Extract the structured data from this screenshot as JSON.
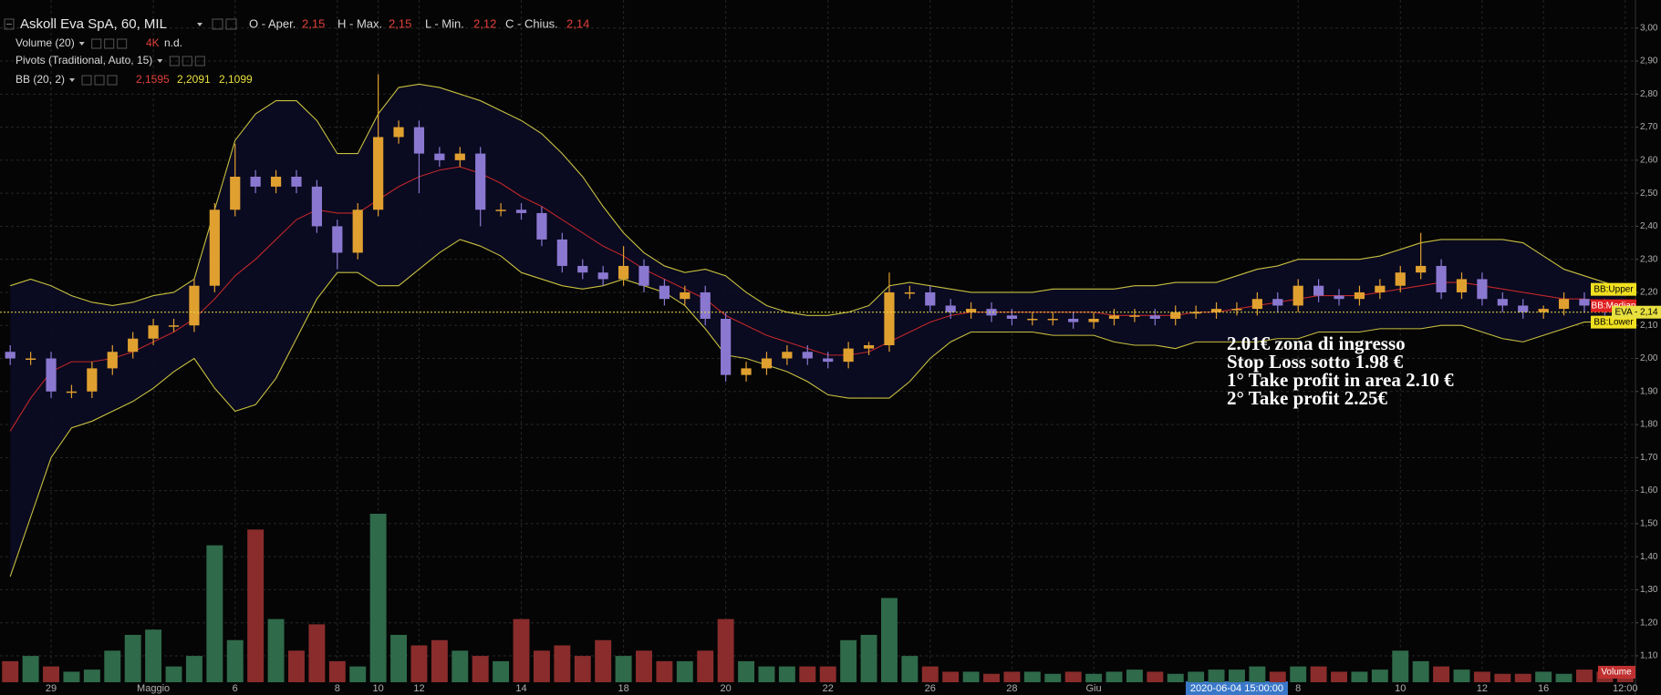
{
  "chart_data": {
    "type": "candlestick",
    "title": "Askoll Eva SpA, 60, MIL",
    "ohlc_legend": [
      {
        "label": "O - Aper.",
        "text": "2,15"
      },
      {
        "label": "H - Max.",
        "text": "2,15"
      },
      {
        "label": "L - Min.",
        "text": "2,12"
      },
      {
        "label": "C - Chius.",
        "text": "2,14"
      }
    ],
    "indicators": [
      {
        "name": "Volume (20)",
        "values": [
          "4K",
          "n.d."
        ],
        "value_colors": [
          "#e0403a",
          "#dddddd"
        ]
      },
      {
        "name": "Pivots (Traditional, Auto, 15)"
      },
      {
        "name": "BB (20, 2)",
        "values": [
          "2,1595",
          "2,2091",
          "2,1099"
        ],
        "value_colors": [
          "#e0403a",
          "#e8e040",
          "#e8e040"
        ]
      }
    ],
    "categories": [
      null,
      null,
      "29",
      null,
      null,
      null,
      null,
      "Maggio",
      null,
      null,
      null,
      "6",
      null,
      null,
      null,
      null,
      "8",
      null,
      "10",
      null,
      "12",
      null,
      null,
      null,
      null,
      "14",
      null,
      null,
      null,
      null,
      "18",
      null,
      null,
      null,
      null,
      "20",
      null,
      null,
      null,
      null,
      "22",
      null,
      null,
      null,
      null,
      "26",
      null,
      null,
      null,
      "28",
      null,
      null,
      null,
      "Giu",
      null,
      null,
      null,
      null,
      null,
      null,
      "2020-06-04 15:00:00",
      null,
      null,
      "8",
      null,
      null,
      null,
      null,
      "10",
      null,
      null,
      null,
      "12",
      null,
      null,
      "16",
      null,
      null,
      null,
      "12:00"
    ],
    "open": [
      2.02,
      2.0,
      2.0,
      1.9,
      1.9,
      1.97,
      2.02,
      2.06,
      2.1,
      2.1,
      2.22,
      2.45,
      2.55,
      2.52,
      2.55,
      2.52,
      2.4,
      2.32,
      2.45,
      2.67,
      2.7,
      2.62,
      2.6,
      2.62,
      2.45,
      2.45,
      2.44,
      2.36,
      2.28,
      2.26,
      2.24,
      2.28,
      2.22,
      2.18,
      2.2,
      2.12,
      1.95,
      1.97,
      2.0,
      2.02,
      2.0,
      1.99,
      2.03,
      2.04,
      2.2,
      2.2,
      2.16,
      2.14,
      2.15,
      2.13,
      2.12,
      2.12,
      2.12,
      2.11,
      2.12,
      2.13,
      2.13,
      2.12,
      2.14,
      2.14,
      2.15,
      2.15,
      2.18,
      2.16,
      2.22,
      2.19,
      2.18,
      2.2,
      2.22,
      2.26,
      2.28,
      2.2,
      2.24,
      2.18,
      2.16,
      2.14,
      2.15,
      2.18,
      2.16,
      2.15
    ],
    "high": [
      2.04,
      2.02,
      2.02,
      1.92,
      1.99,
      2.04,
      2.08,
      2.12,
      2.12,
      2.24,
      2.47,
      2.65,
      2.57,
      2.57,
      2.57,
      2.54,
      2.42,
      2.47,
      2.86,
      2.72,
      2.72,
      2.64,
      2.64,
      2.64,
      2.47,
      2.47,
      2.46,
      2.38,
      2.3,
      2.28,
      2.34,
      2.3,
      2.24,
      2.22,
      2.22,
      2.14,
      1.99,
      2.02,
      2.04,
      2.04,
      2.02,
      2.05,
      2.05,
      2.26,
      2.22,
      2.22,
      2.18,
      2.17,
      2.17,
      2.15,
      2.14,
      2.14,
      2.14,
      2.14,
      2.15,
      2.15,
      2.15,
      2.16,
      2.16,
      2.17,
      2.17,
      2.2,
      2.2,
      2.24,
      2.24,
      2.21,
      2.22,
      2.24,
      2.28,
      2.38,
      2.3,
      2.26,
      2.26,
      2.2,
      2.18,
      2.16,
      2.2,
      2.2,
      2.18,
      2.15
    ],
    "low": [
      1.98,
      1.98,
      1.88,
      1.88,
      1.88,
      1.95,
      2.0,
      2.04,
      2.08,
      2.08,
      2.2,
      2.43,
      2.5,
      2.5,
      2.5,
      2.38,
      2.27,
      2.3,
      2.43,
      2.65,
      2.5,
      2.58,
      2.58,
      2.4,
      2.43,
      2.42,
      2.34,
      2.26,
      2.24,
      2.22,
      2.22,
      2.2,
      2.16,
      2.16,
      2.1,
      1.93,
      1.93,
      1.95,
      1.98,
      1.98,
      1.97,
      1.97,
      2.01,
      2.02,
      2.18,
      2.14,
      2.12,
      2.12,
      2.11,
      2.1,
      2.1,
      2.1,
      2.09,
      2.09,
      2.1,
      2.11,
      2.1,
      2.1,
      2.12,
      2.12,
      2.13,
      2.13,
      2.14,
      2.14,
      2.17,
      2.16,
      2.16,
      2.18,
      2.2,
      2.24,
      2.18,
      2.18,
      2.16,
      2.14,
      2.12,
      2.12,
      2.13,
      2.14,
      2.13,
      2.12
    ],
    "close": [
      2.0,
      2.0,
      1.9,
      1.9,
      1.97,
      2.02,
      2.06,
      2.1,
      2.1,
      2.22,
      2.45,
      2.55,
      2.52,
      2.55,
      2.52,
      2.4,
      2.32,
      2.45,
      2.67,
      2.7,
      2.62,
      2.6,
      2.62,
      2.45,
      2.45,
      2.44,
      2.36,
      2.28,
      2.26,
      2.24,
      2.28,
      2.22,
      2.18,
      2.2,
      2.12,
      1.95,
      1.97,
      2.0,
      2.02,
      2.0,
      1.99,
      2.03,
      2.04,
      2.2,
      2.2,
      2.16,
      2.14,
      2.15,
      2.13,
      2.12,
      2.12,
      2.12,
      2.11,
      2.12,
      2.13,
      2.13,
      2.12,
      2.14,
      2.14,
      2.15,
      2.15,
      2.18,
      2.16,
      2.22,
      2.19,
      2.18,
      2.2,
      2.22,
      2.26,
      2.28,
      2.2,
      2.24,
      2.18,
      2.16,
      2.14,
      2.15,
      2.18,
      2.16,
      2.15,
      2.14
    ],
    "up_color": "#e0a030",
    "down_color": "#8a78d0",
    "bands": {
      "fill": "#0b0b24",
      "series": [
        {
          "name": "BB:Upper",
          "color": "#c8c040",
          "label_color": "#f0e020",
          "values": [
            2.22,
            2.24,
            2.22,
            2.19,
            2.17,
            2.16,
            2.17,
            2.19,
            2.2,
            2.24,
            2.45,
            2.66,
            2.74,
            2.78,
            2.78,
            2.72,
            2.62,
            2.62,
            2.74,
            2.82,
            2.83,
            2.82,
            2.8,
            2.78,
            2.75,
            2.72,
            2.68,
            2.62,
            2.55,
            2.46,
            2.38,
            2.32,
            2.28,
            2.26,
            2.27,
            2.25,
            2.2,
            2.16,
            2.14,
            2.13,
            2.13,
            2.14,
            2.16,
            2.22,
            2.23,
            2.22,
            2.21,
            2.2,
            2.2,
            2.2,
            2.2,
            2.21,
            2.21,
            2.21,
            2.21,
            2.22,
            2.22,
            2.23,
            2.23,
            2.23,
            2.25,
            2.27,
            2.28,
            2.3,
            2.3,
            2.3,
            2.3,
            2.31,
            2.33,
            2.35,
            2.36,
            2.36,
            2.36,
            2.36,
            2.35,
            2.31,
            2.27,
            2.25,
            2.23,
            2.2091
          ]
        },
        {
          "name": "BB:Median",
          "color": "#c0282a",
          "label_color": "#e02020",
          "values": [
            1.78,
            1.88,
            1.96,
            1.99,
            1.99,
            2.0,
            2.02,
            2.05,
            2.08,
            2.12,
            2.18,
            2.25,
            2.3,
            2.36,
            2.42,
            2.45,
            2.44,
            2.44,
            2.48,
            2.52,
            2.55,
            2.57,
            2.58,
            2.56,
            2.53,
            2.49,
            2.46,
            2.42,
            2.38,
            2.34,
            2.31,
            2.27,
            2.24,
            2.21,
            2.18,
            2.13,
            2.1,
            2.07,
            2.05,
            2.03,
            2.01,
            2.01,
            2.02,
            2.05,
            2.08,
            2.11,
            2.13,
            2.14,
            2.14,
            2.14,
            2.14,
            2.14,
            2.14,
            2.14,
            2.13,
            2.13,
            2.13,
            2.13,
            2.14,
            2.14,
            2.15,
            2.16,
            2.17,
            2.18,
            2.19,
            2.19,
            2.19,
            2.2,
            2.21,
            2.22,
            2.23,
            2.23,
            2.22,
            2.21,
            2.2,
            2.19,
            2.18,
            2.18,
            2.17,
            2.1595
          ]
        },
        {
          "name": "BB:Lower",
          "color": "#c8c040",
          "label_color": "#f0e020",
          "values": [
            1.34,
            1.52,
            1.7,
            1.79,
            1.81,
            1.84,
            1.87,
            1.91,
            1.96,
            2.0,
            1.91,
            1.84,
            1.86,
            1.94,
            2.06,
            2.18,
            2.26,
            2.26,
            2.22,
            2.22,
            2.27,
            2.32,
            2.36,
            2.34,
            2.31,
            2.26,
            2.24,
            2.22,
            2.21,
            2.22,
            2.24,
            2.22,
            2.2,
            2.16,
            2.09,
            2.01,
            2.0,
            1.98,
            1.96,
            1.93,
            1.89,
            1.88,
            1.88,
            1.88,
            1.93,
            2.0,
            2.05,
            2.08,
            2.08,
            2.08,
            2.08,
            2.07,
            2.07,
            2.07,
            2.05,
            2.04,
            2.04,
            2.03,
            2.05,
            2.05,
            2.05,
            2.05,
            2.06,
            2.06,
            2.08,
            2.08,
            2.08,
            2.09,
            2.09,
            2.09,
            2.1,
            2.1,
            2.08,
            2.06,
            2.05,
            2.07,
            2.09,
            2.11,
            2.11,
            2.1099
          ]
        }
      ]
    },
    "price_label": "EVA - 2,14",
    "price_color": "#e8e040",
    "volume": {
      "name": "Volume",
      "ylim": [
        0,
        640
      ],
      "up_color": "#2f6a4a",
      "down_color": "#8a2c2c",
      "values": [
        20,
        25,
        15,
        10,
        12,
        30,
        45,
        50,
        15,
        25,
        130,
        40,
        145,
        60,
        30,
        55,
        20,
        15,
        160,
        45,
        35,
        40,
        30,
        25,
        20,
        60,
        30,
        35,
        25,
        40,
        25,
        30,
        20,
        20,
        30,
        60,
        20,
        15,
        15,
        15,
        15,
        40,
        45,
        80,
        25,
        15,
        10,
        10,
        8,
        10,
        10,
        8,
        10,
        8,
        10,
        12,
        10,
        8,
        10,
        12,
        12,
        15,
        10,
        15,
        15,
        10,
        10,
        12,
        30,
        20,
        15,
        12,
        10,
        8,
        8,
        10,
        8,
        12,
        10,
        8
      ]
    },
    "ylim": [
      1.02,
      3.06
    ],
    "yticks": [
      {
        "value": 3.0,
        "label": "3,00"
      },
      {
        "value": 2.9,
        "label": "2,90"
      },
      {
        "value": 2.8,
        "label": "2,80"
      },
      {
        "value": 2.7,
        "label": "2,70"
      },
      {
        "value": 2.6,
        "label": "2,60"
      },
      {
        "value": 2.5,
        "label": "2,50"
      },
      {
        "value": 2.4,
        "label": "2,40"
      },
      {
        "value": 2.3,
        "label": "2,30"
      },
      {
        "value": 2.2,
        "label": "2,20"
      },
      {
        "value": 2.1,
        "label": "2,10"
      },
      {
        "value": 2.0,
        "label": "2,00"
      },
      {
        "value": 1.9,
        "label": "1,90"
      },
      {
        "value": 1.8,
        "label": "1,80"
      },
      {
        "value": 1.7,
        "label": "1,70"
      },
      {
        "value": 1.6,
        "label": "1,60"
      },
      {
        "value": 1.5,
        "label": "1,50"
      },
      {
        "value": 1.4,
        "label": "1,40"
      },
      {
        "value": 1.3,
        "label": "1,30"
      },
      {
        "value": 1.2,
        "label": "1,20"
      },
      {
        "value": 1.1,
        "label": "1,10"
      }
    ],
    "grid": true,
    "annotation": [
      "2.01€ zona di ingresso",
      "Stop Loss sotto 1.98 €",
      "1° Take profit in area 2.10 €",
      "2° Take profit 2.25€"
    ]
  }
}
